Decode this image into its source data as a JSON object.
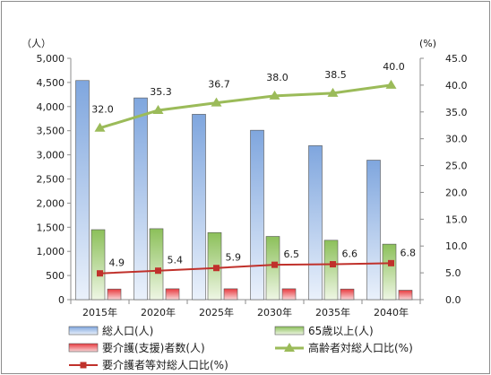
{
  "chart_data": {
    "type": "bar",
    "categories": [
      "2015年",
      "2020年",
      "2025年",
      "2030年",
      "2035年",
      "2040年"
    ],
    "y_left": {
      "unit": "（人）",
      "ylim": [
        0,
        5000
      ],
      "ticks": [
        "0",
        "500",
        "1,000",
        "1,500",
        "2,000",
        "2,500",
        "3,000",
        "3,500",
        "4,000",
        "4,500",
        "5,000"
      ]
    },
    "y_right": {
      "unit": "(%)",
      "ylim": [
        0,
        45
      ],
      "ticks": [
        "0.0",
        "5.0",
        "10.0",
        "15.0",
        "20.0",
        "25.0",
        "30.0",
        "35.0",
        "40.0",
        "45.0"
      ]
    },
    "bar_series": [
      {
        "name": "総人口(人)",
        "values": [
          4540,
          4180,
          3840,
          3510,
          3190,
          2890
        ],
        "color": "#8eb1e1"
      },
      {
        "name": "65歳以上(人)",
        "values": [
          1450,
          1470,
          1390,
          1310,
          1230,
          1150
        ],
        "color": "#9dc96b"
      },
      {
        "name": "要介護(支援)者数(人)",
        "values": [
          220,
          225,
          225,
          225,
          220,
          195
        ],
        "color": "#e0454a"
      }
    ],
    "line_series": [
      {
        "name": "高齢者対総人口比(%)",
        "values": [
          32.0,
          35.3,
          36.7,
          38.0,
          38.5,
          40.0
        ],
        "labels": [
          "32.0",
          "35.3",
          "36.7",
          "38.0",
          "38.5",
          "40.0"
        ],
        "color": "#9bbb59",
        "marker": "triangle"
      },
      {
        "name": "要介護者等対総人口比(%)",
        "values": [
          4.9,
          5.4,
          5.9,
          6.5,
          6.6,
          6.8
        ],
        "labels": [
          "4.9",
          "5.4",
          "5.9",
          "6.5",
          "6.6",
          "6.8"
        ],
        "color": "#c0312b",
        "marker": "square"
      }
    ],
    "grid": false,
    "legend_position": "bottom"
  }
}
